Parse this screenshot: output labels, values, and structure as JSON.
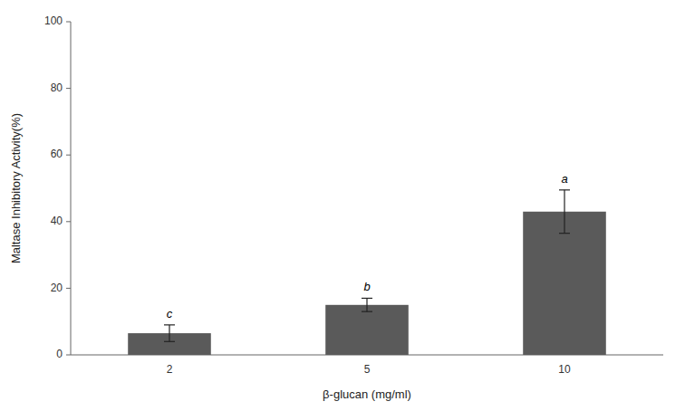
{
  "chart_data": {
    "type": "bar",
    "categories": [
      "2",
      "5",
      "10"
    ],
    "values": [
      6.5,
      15.0,
      43.0
    ],
    "errors": [
      2.5,
      2.0,
      6.5
    ],
    "annotations": [
      "c",
      "b",
      "a"
    ],
    "color": "#5a5a5a",
    "xlabel": "β-glucan (mg/ml)",
    "ylabel": "Maltase Inhibitory Activity(%)",
    "ylim": [
      0,
      100
    ],
    "yticks": [
      0,
      20,
      40,
      60,
      80,
      100
    ],
    "grid": false
  }
}
